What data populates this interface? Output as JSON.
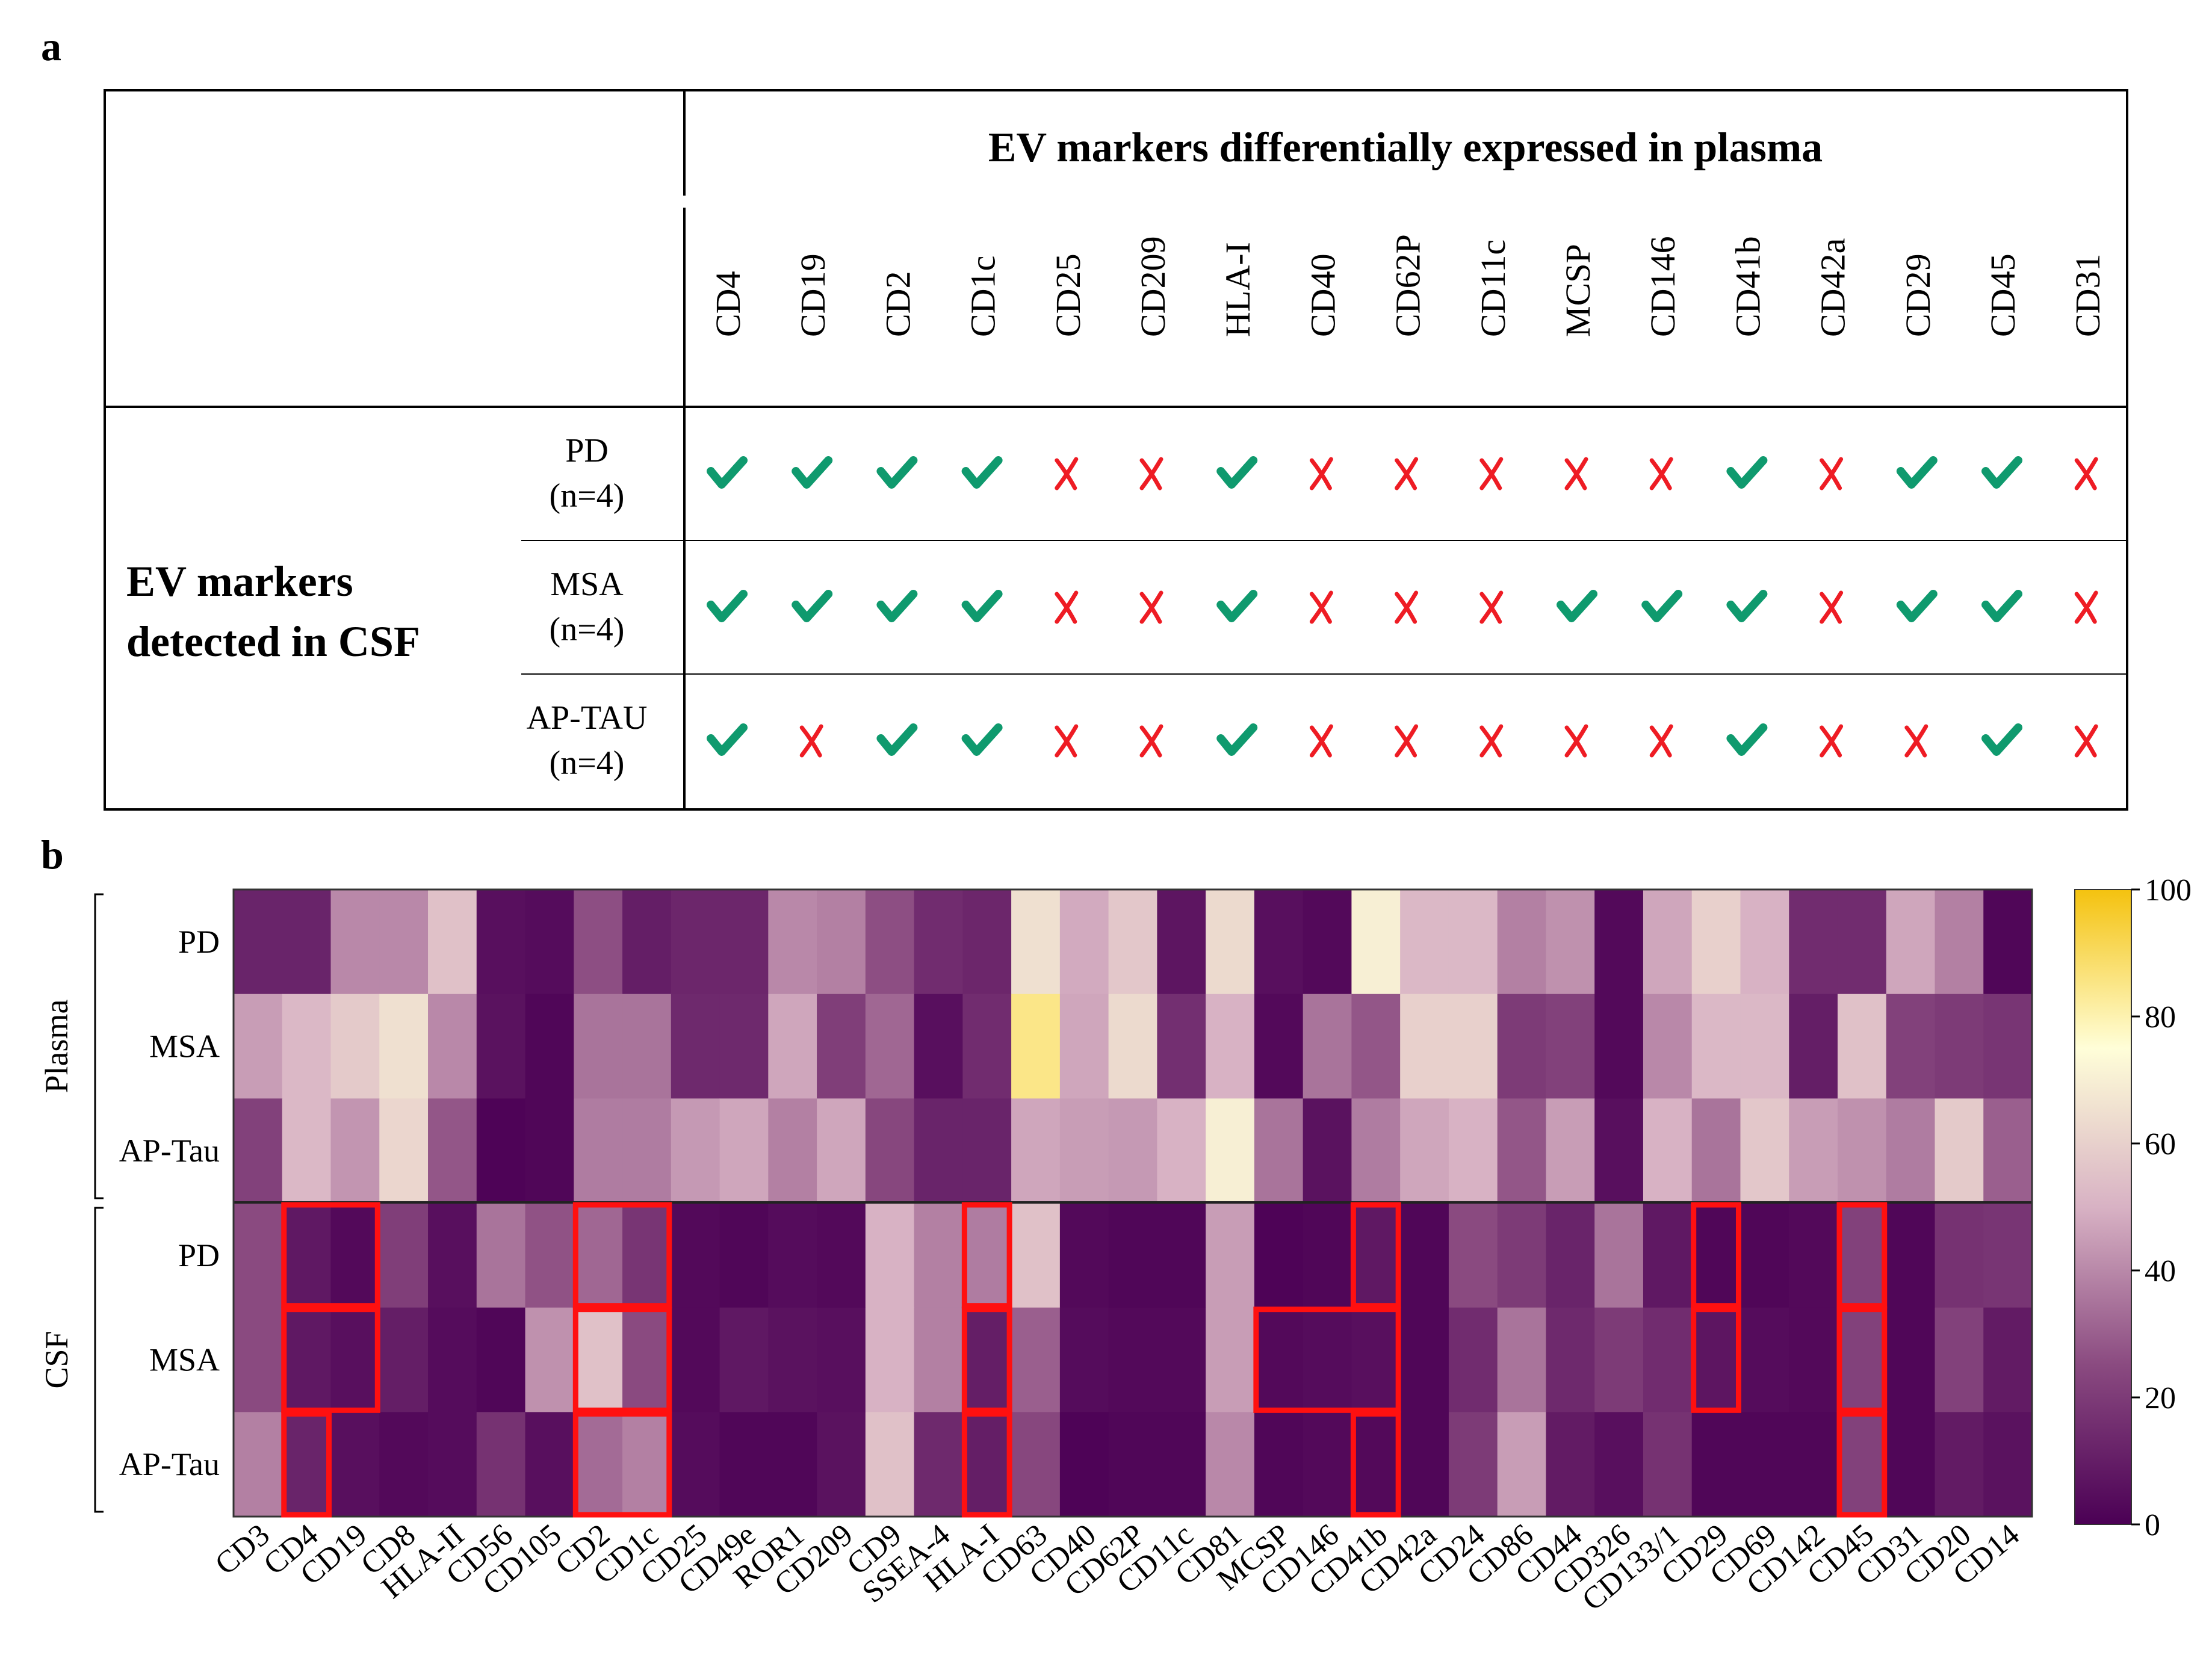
{
  "panel_a": {
    "label": "a",
    "header_title": "EV markers differentially expressed in plasma",
    "row_group_label_line1": "EV markers",
    "row_group_label_line2": "detected in CSF",
    "markers": [
      "CD4",
      "CD19",
      "CD2",
      "CD1c",
      "CD25",
      "CD209",
      "HLA-I",
      "CD40",
      "CD62P",
      "CD11c",
      "MCSP",
      "CD146",
      "CD41b",
      "CD42a",
      "CD29",
      "CD45",
      "CD31"
    ],
    "rows": [
      {
        "name": "PD",
        "n": "(n=4)",
        "detected": [
          true,
          true,
          true,
          true,
          false,
          false,
          true,
          false,
          false,
          false,
          false,
          false,
          true,
          false,
          true,
          true,
          false
        ]
      },
      {
        "name": "MSA",
        "n": "(n=4)",
        "detected": [
          true,
          true,
          true,
          true,
          false,
          false,
          true,
          false,
          false,
          false,
          true,
          true,
          true,
          false,
          true,
          true,
          false
        ]
      },
      {
        "name": "AP-TAU",
        "n": "(n=4)",
        "detected": [
          true,
          false,
          true,
          true,
          false,
          false,
          true,
          false,
          false,
          false,
          false,
          false,
          true,
          false,
          false,
          true,
          false
        ]
      }
    ],
    "check_color": "#0f9a6e",
    "cross_color": "#ee1c24"
  },
  "chart_data": {
    "type": "heatmap",
    "panel_label": "b",
    "columns": [
      "CD3",
      "CD4",
      "CD19",
      "CD8",
      "HLA-II",
      "CD56",
      "CD105",
      "CD2",
      "CD1c",
      "CD25",
      "CD49e",
      "ROR1",
      "CD209",
      "CD9",
      "SSEA-4",
      "HLA-I",
      "CD63",
      "CD40",
      "CD62P",
      "CD11c",
      "CD81",
      "MCSP",
      "CD146",
      "CD41b",
      "CD42a",
      "CD24",
      "CD86",
      "CD44",
      "CD326",
      "CD133/1",
      "CD29",
      "CD69",
      "CD142",
      "CD45",
      "CD31",
      "CD20",
      "CD14"
    ],
    "row_groups": [
      {
        "name": "Plasma",
        "rows": [
          "PD",
          "MSA",
          "AP-Tau"
        ]
      },
      {
        "name": "CSF",
        "rows": [
          "PD",
          "MSA",
          "AP-Tau"
        ]
      }
    ],
    "values": [
      [
        12,
        12,
        40,
        40,
        55,
        5,
        4,
        26,
        10,
        13,
        13,
        40,
        38,
        26,
        15,
        13,
        65,
        48,
        57,
        7,
        63,
        5,
        3,
        70,
        52,
        52,
        38,
        42,
        3,
        47,
        60,
        50,
        15,
        15,
        47,
        38,
        2
      ],
      [
        45,
        52,
        58,
        65,
        40,
        6,
        2,
        35,
        35,
        14,
        14,
        47,
        21,
        32,
        5,
        15,
        85,
        47,
        63,
        16,
        50,
        3,
        35,
        28,
        60,
        60,
        20,
        22,
        3,
        40,
        52,
        52,
        10,
        55,
        22,
        20,
        18
      ],
      [
        22,
        52,
        43,
        62,
        28,
        1,
        2,
        37,
        37,
        44,
        47,
        38,
        47,
        24,
        12,
        12,
        47,
        45,
        44,
        50,
        70,
        35,
        6,
        37,
        47,
        50,
        28,
        45,
        5,
        50,
        35,
        57,
        45,
        42,
        37,
        58,
        30
      ],
      [
        25,
        8,
        3,
        21,
        5,
        35,
        27,
        32,
        18,
        3,
        2,
        4,
        3,
        50,
        38,
        37,
        55,
        3,
        2,
        2,
        45,
        1,
        2,
        8,
        2,
        25,
        20,
        12,
        35,
        8,
        2,
        2,
        3,
        22,
        2,
        17,
        18
      ],
      [
        25,
        8,
        5,
        10,
        4,
        2,
        42,
        55,
        25,
        3,
        8,
        6,
        5,
        50,
        38,
        10,
        30,
        4,
        3,
        3,
        45,
        3,
        4,
        5,
        2,
        15,
        35,
        14,
        20,
        15,
        7,
        4,
        3,
        22,
        2,
        22,
        9
      ],
      [
        38,
        12,
        5,
        3,
        4,
        17,
        5,
        33,
        38,
        4,
        2,
        2,
        6,
        55,
        14,
        10,
        24,
        1,
        2,
        2,
        40,
        2,
        3,
        3,
        2,
        20,
        45,
        9,
        5,
        17,
        2,
        2,
        2,
        22,
        2,
        9,
        6
      ]
    ],
    "highlights": [
      {
        "col_start": 1,
        "col_end": 2,
        "row": 3
      },
      {
        "col_start": 1,
        "col_end": 2,
        "row": 4
      },
      {
        "col_start": 1,
        "col_end": 1,
        "row": 5
      },
      {
        "col_start": 7,
        "col_end": 8,
        "row": 3
      },
      {
        "col_start": 7,
        "col_end": 8,
        "row": 4
      },
      {
        "col_start": 7,
        "col_end": 8,
        "row": 5
      },
      {
        "col_start": 15,
        "col_end": 15,
        "row": 3
      },
      {
        "col_start": 15,
        "col_end": 15,
        "row": 4
      },
      {
        "col_start": 15,
        "col_end": 15,
        "row": 5
      },
      {
        "col_start": 21,
        "col_end": 23,
        "row": 4
      },
      {
        "col_start": 23,
        "col_end": 23,
        "row": 3
      },
      {
        "col_start": 23,
        "col_end": 23,
        "row": 5
      },
      {
        "col_start": 30,
        "col_end": 30,
        "row": 3
      },
      {
        "col_start": 30,
        "col_end": 30,
        "row": 4
      },
      {
        "col_start": 33,
        "col_end": 33,
        "row": 3
      },
      {
        "col_start": 33,
        "col_end": 33,
        "row": 4
      },
      {
        "col_start": 33,
        "col_end": 33,
        "row": 5
      }
    ],
    "highlight_color": "#ff1010",
    "colorbar": {
      "min": 0,
      "max": 100,
      "ticks": [
        0,
        20,
        40,
        60,
        80,
        100
      ]
    },
    "colormap": [
      "#4b0055",
      "#8a4a80",
      "#d8b2c4",
      "#fffed8",
      "#f4c20f"
    ]
  }
}
